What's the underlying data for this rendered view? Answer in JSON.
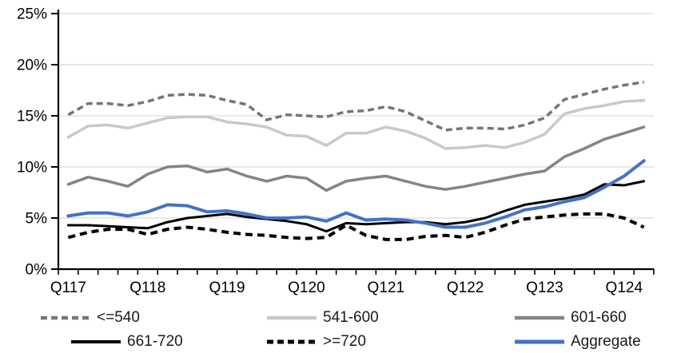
{
  "chart_data": {
    "type": "line",
    "title": "",
    "xlabel": "",
    "ylabel": "",
    "ylim": [
      0,
      25
    ],
    "grid": "horizontal",
    "y_tick_labels": [
      "0%",
      "5%",
      "10%",
      "15%",
      "20%",
      "25%"
    ],
    "x_axis_labels": [
      "Q117",
      "Q118",
      "Q119",
      "Q120",
      "Q121",
      "Q122",
      "Q123",
      "Q124"
    ],
    "x_label_every": 4,
    "categories": [
      "Q117",
      "Q217",
      "Q317",
      "Q417",
      "Q118",
      "Q218",
      "Q318",
      "Q418",
      "Q119",
      "Q219",
      "Q319",
      "Q419",
      "Q120",
      "Q220",
      "Q320",
      "Q420",
      "Q121",
      "Q221",
      "Q321",
      "Q421",
      "Q122",
      "Q222",
      "Q322",
      "Q422",
      "Q123",
      "Q223",
      "Q323",
      "Q423",
      "Q124",
      "Q224"
    ],
    "legend_position": "bottom",
    "legend_rows": [
      [
        0,
        1,
        2
      ],
      [
        3,
        4,
        5
      ]
    ],
    "axis_color": "#000000",
    "gridline_color": "#d9d9d9",
    "series": [
      {
        "id": "le-540",
        "name": "<=540",
        "color": "#757575",
        "dash": "8,5",
        "width": 3.5,
        "values": [
          15.1,
          16.2,
          16.2,
          16.0,
          16.4,
          17.0,
          17.1,
          17.0,
          16.5,
          16.1,
          14.6,
          15.1,
          15.0,
          14.9,
          15.4,
          15.5,
          15.9,
          15.4,
          14.5,
          13.6,
          13.8,
          13.8,
          13.7,
          14.1,
          14.8,
          16.6,
          17.1,
          17.6,
          18.0,
          18.3
        ]
      },
      {
        "id": "541-600",
        "name": "541-600",
        "color": "#c9c9c9",
        "dash": null,
        "width": 3.5,
        "values": [
          12.9,
          14.0,
          14.1,
          13.8,
          14.3,
          14.8,
          14.9,
          14.9,
          14.4,
          14.2,
          13.9,
          13.1,
          13.0,
          12.1,
          13.3,
          13.3,
          13.9,
          13.5,
          12.8,
          11.8,
          11.9,
          12.1,
          11.9,
          12.4,
          13.2,
          15.2,
          15.7,
          16.0,
          16.4,
          16.5
        ]
      },
      {
        "id": "601-660",
        "name": "601-660",
        "color": "#848484",
        "dash": null,
        "width": 3.5,
        "values": [
          8.3,
          9.0,
          8.6,
          8.1,
          9.3,
          10.0,
          10.1,
          9.5,
          9.8,
          9.1,
          8.6,
          9.1,
          8.9,
          7.7,
          8.6,
          8.9,
          9.1,
          8.6,
          8.1,
          7.8,
          8.1,
          8.5,
          8.9,
          9.3,
          9.6,
          11.0,
          11.8,
          12.7,
          13.3,
          13.9
        ]
      },
      {
        "id": "661-720",
        "name": "661-720",
        "color": "#000000",
        "dash": null,
        "width": 3,
        "values": [
          4.3,
          4.3,
          4.2,
          4.1,
          4.0,
          4.6,
          5.0,
          5.2,
          5.4,
          5.1,
          4.9,
          4.7,
          4.4,
          3.7,
          4.5,
          4.4,
          4.5,
          4.6,
          4.6,
          4.4,
          4.6,
          5.0,
          5.7,
          6.3,
          6.6,
          6.9,
          7.3,
          8.3,
          8.2,
          8.6
        ]
      },
      {
        "id": "ge-720",
        "name": ">=720",
        "color": "#000000",
        "dash": "9,6",
        "width": 4,
        "values": [
          3.1,
          3.6,
          3.9,
          3.9,
          3.4,
          3.9,
          4.1,
          3.9,
          3.6,
          3.4,
          3.3,
          3.1,
          3.0,
          3.1,
          4.3,
          3.3,
          2.9,
          2.9,
          3.2,
          3.3,
          3.1,
          3.6,
          4.3,
          4.9,
          5.1,
          5.3,
          5.4,
          5.4,
          5.0,
          4.1
        ]
      },
      {
        "id": "aggregate",
        "name": "Aggregate",
        "color": "#4472c4",
        "dash": null,
        "width": 4,
        "values": [
          5.2,
          5.5,
          5.5,
          5.2,
          5.6,
          6.3,
          6.2,
          5.6,
          5.7,
          5.4,
          5.0,
          5.0,
          5.1,
          4.7,
          5.5,
          4.8,
          4.9,
          4.8,
          4.5,
          4.1,
          4.1,
          4.5,
          5.1,
          5.8,
          6.1,
          6.6,
          7.0,
          8.0,
          9.1,
          10.6
        ]
      }
    ]
  }
}
